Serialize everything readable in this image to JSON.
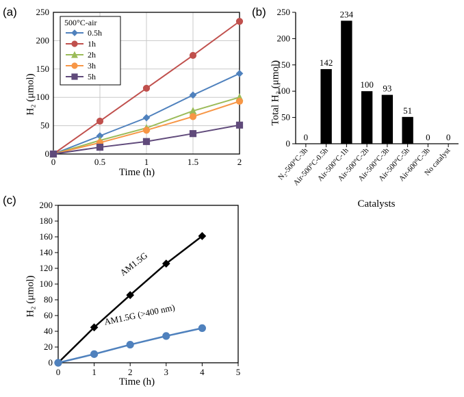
{
  "panelA": {
    "label": "(a)",
    "type": "line",
    "title": "500°C-air",
    "title_fontsize": 12,
    "xlabel": "Time (h)",
    "ylabel": "H₂ (μmol)",
    "label_fontsize": 15,
    "xlim": [
      0,
      2
    ],
    "xtick_step": 0.5,
    "xticks": [
      "0",
      "0.5",
      "1",
      "1.5",
      "2"
    ],
    "ylim": [
      0,
      250
    ],
    "ytick_step": 50,
    "yticks": [
      "0",
      "50",
      "100",
      "150",
      "200",
      "250"
    ],
    "grid_color": "#c8c8c8",
    "background_color": "#ffffff",
    "border_color": "#000000",
    "series": [
      {
        "name": "0.5h",
        "label": "0.5h",
        "color": "#4f81bd",
        "marker": "diamond",
        "linewidth": 2,
        "x": [
          0,
          0.5,
          1,
          1.5,
          2
        ],
        "y": [
          0,
          32,
          64,
          104,
          142
        ]
      },
      {
        "name": "1h",
        "label": "1h",
        "color": "#c0504d",
        "marker": "circle",
        "linewidth": 2,
        "x": [
          0,
          0.5,
          1,
          1.5,
          2
        ],
        "y": [
          0,
          58,
          116,
          174,
          234
        ]
      },
      {
        "name": "2h",
        "label": "2h",
        "color": "#9bbb59",
        "marker": "triangle",
        "linewidth": 2,
        "x": [
          0,
          0.5,
          1,
          1.5,
          2
        ],
        "y": [
          0,
          24,
          46,
          76,
          100
        ]
      },
      {
        "name": "3h",
        "label": "3h",
        "color": "#f79646",
        "marker": "circle",
        "linewidth": 2,
        "x": [
          0,
          0.5,
          1,
          1.5,
          2
        ],
        "y": [
          0,
          20,
          42,
          66,
          93
        ]
      },
      {
        "name": "5h",
        "label": "5h",
        "color": "#604a7b",
        "marker": "square",
        "linewidth": 2,
        "x": [
          0,
          0.5,
          1,
          1.5,
          2
        ],
        "y": [
          0,
          12,
          22,
          36,
          51
        ]
      }
    ]
  },
  "panelB": {
    "label": "(b)",
    "type": "bar",
    "xlabel": "Catalysts",
    "ylabel": "Total H₂ (μmol)",
    "label_fontsize": 15,
    "ylim": [
      0,
      250
    ],
    "ytick_step": 50,
    "yticks": [
      "0",
      "50",
      "100",
      "150",
      "200",
      "250"
    ],
    "bar_color": "#000000",
    "bar_width": 0.55,
    "background_color": "#ffffff",
    "border_color": "#000000",
    "categories": [
      "N₂-500°C-3h",
      "Air-500°C-0.5h",
      "Air-500°C-1h",
      "Air-500°C-2h",
      "Air-500°C-3h",
      "Air-500°C-5h",
      "Air-600°C-3h",
      "No catalyst"
    ],
    "values": [
      0,
      142,
      234,
      100,
      93,
      51,
      0,
      0
    ],
    "value_labels": [
      "0",
      "142",
      "234",
      "100",
      "93",
      "51",
      "0",
      "0"
    ]
  },
  "panelC": {
    "label": "(c)",
    "type": "line",
    "xlabel": "Time (h)",
    "ylabel": "H₂ (μmol)",
    "label_fontsize": 15,
    "xlim": [
      0,
      5
    ],
    "xtick_step": 1,
    "xticks": [
      "0",
      "1",
      "2",
      "3",
      "4",
      "5"
    ],
    "ylim": [
      0,
      200
    ],
    "ytick_step": 20,
    "yticks": [
      "0",
      "20",
      "40",
      "60",
      "80",
      "100",
      "120",
      "140",
      "160",
      "180",
      "200"
    ],
    "background_color": "#ffffff",
    "border_color": "#000000",
    "series": [
      {
        "name": "AM1.5G",
        "label": "AM1.5G",
        "color": "#000000",
        "marker": "diamond",
        "linewidth": 2.5,
        "x": [
          0,
          1,
          2,
          3,
          4
        ],
        "y": [
          0,
          45,
          86,
          126,
          161
        ],
        "label_x": 1.8,
        "label_y": 110,
        "label_rotate": -38
      },
      {
        "name": "AM1.5G_400",
        "label": "AM1.5G (>400 nm)",
        "color": "#4f81bd",
        "marker": "circle",
        "linewidth": 2.5,
        "x": [
          0,
          1,
          2,
          3,
          4
        ],
        "y": [
          0,
          11,
          23,
          34,
          44
        ],
        "label_x": 1.3,
        "label_y": 48,
        "label_rotate": -12
      }
    ]
  }
}
